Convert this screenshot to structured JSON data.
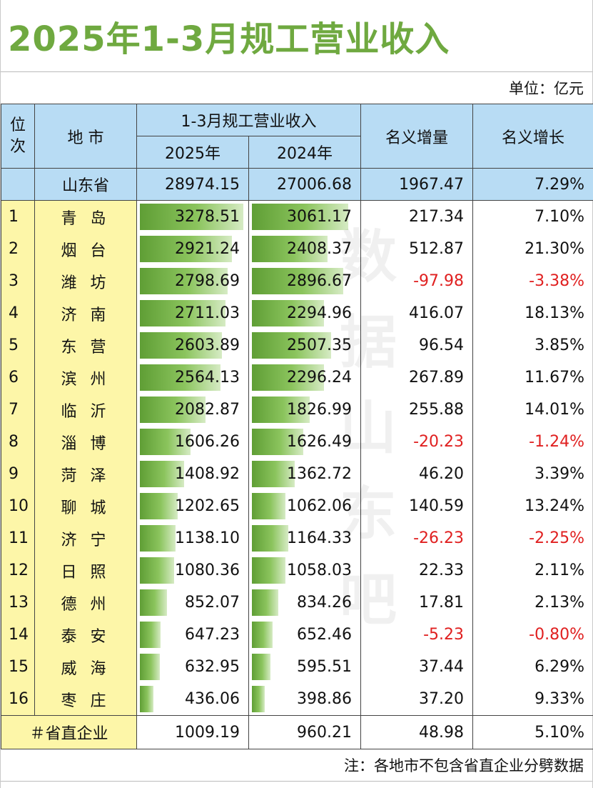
{
  "title": "2025年1-3月规工营业收入",
  "unit": "单位：亿元",
  "note": "注：各地市不包含省直企业分劈数据",
  "watermark": [
    "数",
    "据",
    "山",
    "东",
    "吧"
  ],
  "colors": {
    "title": "#6fa940",
    "header_bg": "#b8dcf4",
    "city_bg": "#fdf6a8",
    "negative": "#e02020",
    "bar": "#6aa83c"
  },
  "header": {
    "rank": "位次",
    "city": "地 市",
    "group": "1-3月规工营业收入",
    "y2025": "2025年",
    "y2024": "2024年",
    "increase": "名义增量",
    "growth": "名义增长"
  },
  "province": {
    "name": "山东省",
    "v2025": "28974.15",
    "v2024": "27006.68",
    "increase": "1967.47",
    "growth": "7.29%"
  },
  "footer": {
    "name": "＃省直企业",
    "v2025": "1009.19",
    "v2024": "960.21",
    "increase": "48.98",
    "growth": "5.10%"
  },
  "chart_data": {
    "type": "table",
    "title": "2025年1-3月规工营业收入",
    "columns": [
      "位次",
      "地 市",
      "2025年",
      "2024年",
      "名义增量",
      "名义增长"
    ],
    "rows": [
      {
        "rank": "1",
        "city": "青 岛",
        "v2025": "3278.51",
        "v2024": "3061.17",
        "increase": "217.34",
        "growth": "7.10%"
      },
      {
        "rank": "2",
        "city": "烟 台",
        "v2025": "2921.24",
        "v2024": "2408.37",
        "increase": "512.87",
        "growth": "21.30%"
      },
      {
        "rank": "3",
        "city": "潍 坊",
        "v2025": "2798.69",
        "v2024": "2896.67",
        "increase": "-97.98",
        "growth": "-3.38%"
      },
      {
        "rank": "4",
        "city": "济 南",
        "v2025": "2711.03",
        "v2024": "2294.96",
        "increase": "416.07",
        "growth": "18.13%"
      },
      {
        "rank": "5",
        "city": "东 营",
        "v2025": "2603.89",
        "v2024": "2507.35",
        "increase": "96.54",
        "growth": "3.85%"
      },
      {
        "rank": "6",
        "city": "滨 州",
        "v2025": "2564.13",
        "v2024": "2296.24",
        "increase": "267.89",
        "growth": "11.67%"
      },
      {
        "rank": "7",
        "city": "临 沂",
        "v2025": "2082.87",
        "v2024": "1826.99",
        "increase": "255.88",
        "growth": "14.01%"
      },
      {
        "rank": "8",
        "city": "淄 博",
        "v2025": "1606.26",
        "v2024": "1626.49",
        "increase": "-20.23",
        "growth": "-1.24%"
      },
      {
        "rank": "9",
        "city": "菏 泽",
        "v2025": "1408.92",
        "v2024": "1362.72",
        "increase": "46.20",
        "growth": "3.39%"
      },
      {
        "rank": "10",
        "city": "聊 城",
        "v2025": "1202.65",
        "v2024": "1062.06",
        "increase": "140.59",
        "growth": "13.24%"
      },
      {
        "rank": "11",
        "city": "济 宁",
        "v2025": "1138.10",
        "v2024": "1164.33",
        "increase": "-26.23",
        "growth": "-2.25%"
      },
      {
        "rank": "12",
        "city": "日 照",
        "v2025": "1080.36",
        "v2024": "1058.03",
        "increase": "22.33",
        "growth": "2.11%"
      },
      {
        "rank": "13",
        "city": "德 州",
        "v2025": "852.07",
        "v2024": "834.26",
        "increase": "17.81",
        "growth": "2.13%"
      },
      {
        "rank": "14",
        "city": "泰 安",
        "v2025": "647.23",
        "v2024": "652.46",
        "increase": "-5.23",
        "growth": "-0.80%"
      },
      {
        "rank": "15",
        "city": "威 海",
        "v2025": "632.95",
        "v2024": "595.51",
        "increase": "37.44",
        "growth": "6.29%"
      },
      {
        "rank": "16",
        "city": "枣 庄",
        "v2025": "436.06",
        "v2024": "398.86",
        "increase": "37.20",
        "growth": "9.33%"
      }
    ]
  }
}
